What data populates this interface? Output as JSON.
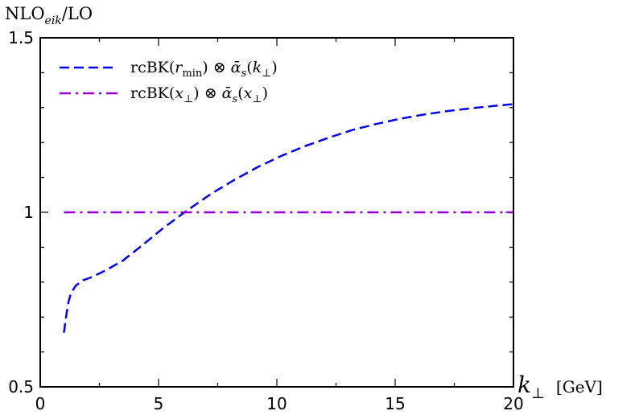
{
  "chart_data": {
    "type": "line",
    "title": "",
    "ylabel": {
      "base": "NLO",
      "sub": "eik",
      "rest": "/LO"
    },
    "xlabel": {
      "main": "k",
      "sub": "⊥",
      "unit": "[GeV]"
    },
    "xlim": [
      0,
      20
    ],
    "ylim": [
      0.5,
      1.5
    ],
    "x_ticks": [
      0,
      5,
      10,
      15,
      20
    ],
    "x_tick_labels": [
      "0",
      "5",
      "10",
      "15",
      "20"
    ],
    "y_ticks": [
      0.5,
      1,
      1.5
    ],
    "y_tick_labels": [
      "0.5",
      "1",
      "1.5"
    ],
    "grid": false,
    "legend_position": "top-left",
    "series": [
      {
        "name": "rcBK(r_min) ⊗ ᾱ_s(k_⊥)",
        "legend": {
          "a": "rcBK(",
          "b": "r",
          "c": "min",
          "d": ") ⊗ ",
          "e": "ᾱ",
          "f": "s",
          "g": "(",
          "h": "k",
          "i": "⊥",
          "j": ")"
        },
        "color": "#0000ee",
        "dash": "long-dash",
        "x": [
          1.0,
          1.1,
          1.2,
          1.3,
          1.5,
          1.8,
          2.2,
          2.8,
          3.5,
          4.3,
          5.2,
          6.2,
          7.2,
          8.2,
          9.2,
          10.2,
          11.2,
          12.2,
          13.2,
          14.2,
          15.2,
          16.2,
          17.2,
          18.2,
          19.2,
          20.0
        ],
        "y": [
          0.655,
          0.705,
          0.745,
          0.768,
          0.79,
          0.805,
          0.815,
          0.835,
          0.862,
          0.905,
          0.955,
          1.005,
          1.052,
          1.093,
          1.13,
          1.162,
          1.19,
          1.214,
          1.236,
          1.253,
          1.268,
          1.28,
          1.29,
          1.298,
          1.305,
          1.31
        ]
      },
      {
        "name": "rcBK(x_⊥) ⊗ ᾱ_s(x_⊥)",
        "legend": {
          "a": "rcBK(",
          "b": "x",
          "c": "⊥",
          "d": ") ⊗ ",
          "e": "ᾱ",
          "f": "s",
          "g": "(",
          "h": "x",
          "i": "⊥",
          "j": ")"
        },
        "color": "#9400d3",
        "dash": "dash-dot",
        "x": [
          1.0,
          5.0,
          10.0,
          15.0,
          20.0
        ],
        "y": [
          1.0,
          1.0,
          1.0,
          1.0,
          1.0
        ]
      }
    ]
  }
}
